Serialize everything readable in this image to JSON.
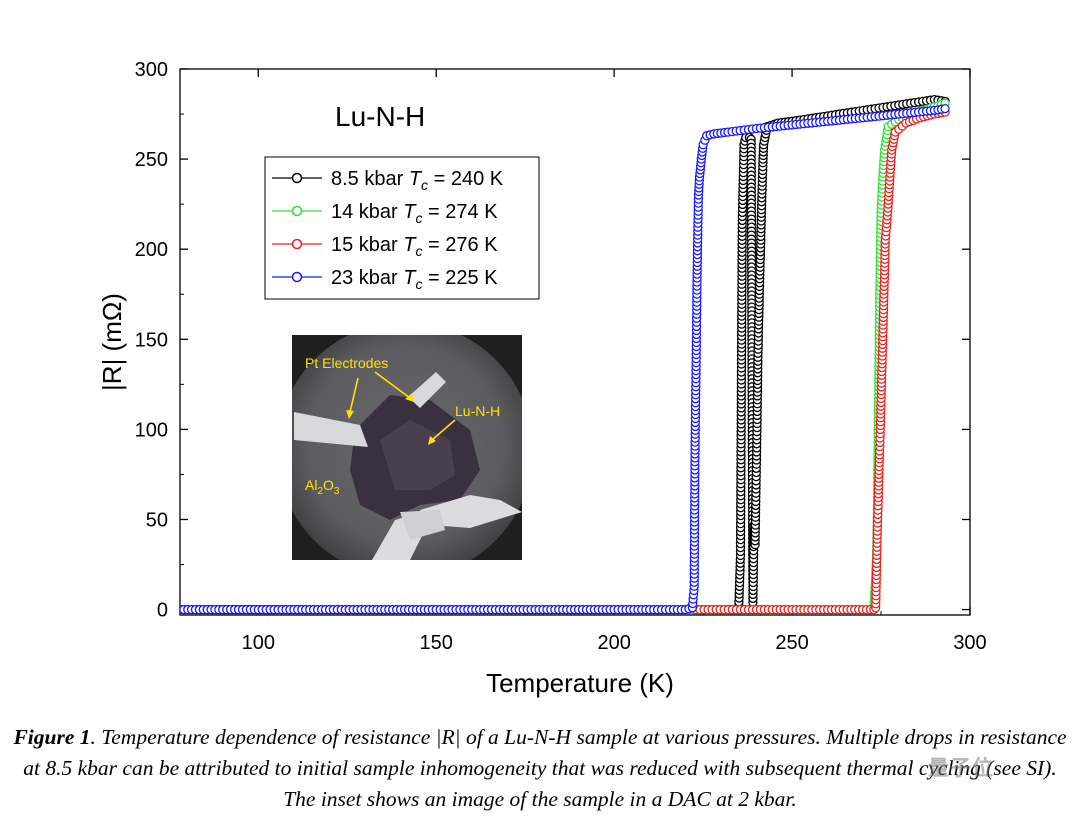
{
  "chart_data": {
    "type": "scatter",
    "title": "Lu-N-H",
    "xlabel": "Temperature (K)",
    "ylabel": "|R| (mΩ)",
    "xlim": [
      78,
      300
    ],
    "ylim": [
      -3,
      300
    ],
    "xticks": [
      100,
      150,
      200,
      250,
      300
    ],
    "yticks": [
      0,
      50,
      100,
      150,
      200,
      250,
      300
    ],
    "grid": false,
    "legend_position": "top-left",
    "series": [
      {
        "name": "8.5 kbar T",
        "legend": {
          "prefix": "8.5 kbar ",
          "var": "T",
          "sub": "c",
          "suffix": " = 240 K"
        },
        "color": "#000000",
        "points": [
          [
            78,
            0
          ],
          [
            120,
            0
          ],
          [
            160,
            0
          ],
          [
            200,
            0
          ],
          [
            230,
            0
          ],
          [
            235,
            0
          ],
          [
            235.5,
            30
          ],
          [
            236,
            216
          ],
          [
            236.5,
            258
          ],
          [
            237,
            262
          ],
          [
            238,
            262
          ],
          [
            238.5,
            261
          ],
          [
            239,
            4
          ],
          [
            239.3,
            46
          ],
          [
            239.6,
            36
          ],
          [
            239.8,
            60
          ],
          [
            240,
            83
          ],
          [
            240.2,
            110
          ],
          [
            240.4,
            140
          ],
          [
            240.6,
            158
          ],
          [
            240.8,
            175
          ],
          [
            241,
            190
          ],
          [
            241.2,
            205
          ],
          [
            241.4,
            222
          ],
          [
            241.6,
            235
          ],
          [
            241.8,
            248
          ],
          [
            242,
            258
          ],
          [
            243,
            268
          ],
          [
            246,
            270
          ],
          [
            250,
            271
          ],
          [
            260,
            274
          ],
          [
            270,
            277
          ],
          [
            280,
            280
          ],
          [
            290,
            283
          ],
          [
            293,
            282
          ]
        ]
      },
      {
        "name": "14 kbar T",
        "legend": {
          "prefix": "14 kbar ",
          "var": "T",
          "sub": "c",
          "suffix": " = 274 K"
        },
        "color": "#33dd33",
        "points": [
          [
            210,
            0
          ],
          [
            240,
            0
          ],
          [
            260,
            0
          ],
          [
            272,
            0
          ],
          [
            273,
            2
          ],
          [
            273.2,
            8
          ],
          [
            273.4,
            14
          ],
          [
            273.6,
            24
          ],
          [
            273.8,
            33
          ],
          [
            274,
            60
          ],
          [
            274.2,
            95
          ],
          [
            274.4,
            130
          ],
          [
            274.6,
            170
          ],
          [
            274.8,
            195
          ],
          [
            275,
            220
          ],
          [
            275.5,
            240
          ],
          [
            276,
            255
          ],
          [
            277,
            268
          ],
          [
            280,
            272
          ],
          [
            285,
            276
          ],
          [
            290,
            279
          ],
          [
            293,
            281
          ]
        ]
      },
      {
        "name": "15 kbar T",
        "legend": {
          "prefix": "15 kbar ",
          "var": "T",
          "sub": "c",
          "suffix": " = 276 K"
        },
        "color": "#e8231e",
        "points": [
          [
            223,
            0
          ],
          [
            240,
            0
          ],
          [
            260,
            0
          ],
          [
            272,
            0
          ],
          [
            273,
            0
          ],
          [
            273.5,
            1
          ],
          [
            274,
            48
          ],
          [
            274.2,
            60
          ],
          [
            274.4,
            75
          ],
          [
            274.6,
            88
          ],
          [
            274.8,
            100
          ],
          [
            275,
            115
          ],
          [
            275.2,
            130
          ],
          [
            275.4,
            145
          ],
          [
            275.6,
            160
          ],
          [
            275.8,
            175
          ],
          [
            276,
            188
          ],
          [
            276.2,
            205
          ],
          [
            276.5,
            212
          ],
          [
            277,
            225
          ],
          [
            277.5,
            240
          ],
          [
            278,
            255
          ],
          [
            279,
            265
          ],
          [
            282,
            270
          ],
          [
            286,
            273
          ],
          [
            290,
            275
          ],
          [
            293,
            276
          ]
        ]
      },
      {
        "name": "23 kbar T",
        "legend": {
          "prefix": "23 kbar ",
          "var": "T",
          "sub": "c",
          "suffix": " = 225 K"
        },
        "color": "#1a1aff",
        "points": [
          [
            78,
            0
          ],
          [
            90,
            0
          ],
          [
            100,
            0
          ],
          [
            110,
            0
          ],
          [
            120,
            0
          ],
          [
            130,
            0
          ],
          [
            140,
            0
          ],
          [
            150,
            0
          ],
          [
            160,
            0
          ],
          [
            170,
            0
          ],
          [
            180,
            0
          ],
          [
            190,
            0
          ],
          [
            200,
            0
          ],
          [
            210,
            0
          ],
          [
            220,
            0
          ],
          [
            222,
            1
          ],
          [
            222.5,
            13
          ],
          [
            222.7,
            82
          ],
          [
            222.9,
            117
          ],
          [
            223.1,
            146
          ],
          [
            223.3,
            184
          ],
          [
            223.5,
            210
          ],
          [
            223.7,
            230
          ],
          [
            224,
            240
          ],
          [
            224.5,
            250
          ],
          [
            225,
            258
          ],
          [
            226,
            263
          ],
          [
            228,
            264
          ],
          [
            232,
            265
          ],
          [
            240,
            267
          ],
          [
            250,
            269
          ],
          [
            260,
            271
          ],
          [
            270,
            273
          ],
          [
            280,
            275
          ],
          [
            290,
            277
          ],
          [
            293,
            278
          ]
        ]
      }
    ],
    "inset": {
      "labels": {
        "electrodes": "Pt Electrodes",
        "sample": "Lu-N-H",
        "substrate_base": "Al",
        "substrate_sub1": "2",
        "substrate_mid": "O",
        "substrate_sub2": "3"
      },
      "label_color": "#ffe100"
    }
  },
  "caption": {
    "lead": "Figure 1",
    "text": ". Temperature dependence of resistance |R| of a Lu-N-H sample at various pressures. Multiple drops in resistance at 8.5 kbar can be attributed to initial sample inhomogeneity that was reduced with subsequent thermal cycling (see SI). The inset shows an image of the sample in a DAC at 2 kbar."
  },
  "watermark": "量子位"
}
